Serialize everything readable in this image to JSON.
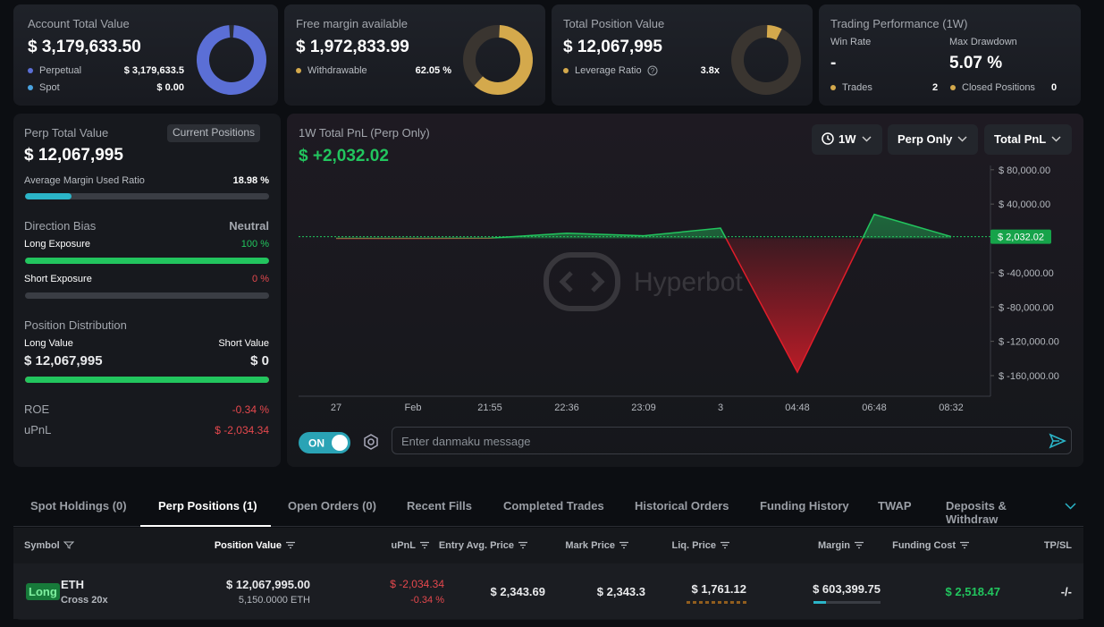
{
  "cards": [
    {
      "title": "Account Total Value",
      "value": "$ 3,179,633.50",
      "rows": [
        {
          "label": "Perpetual",
          "value": {
            "value": 3179633.5,
            "label": "$ 3,179,633.5"
          }
        },
        {
          "label": "Spot",
          "value": {
            "value": 0,
            "label": "$ 0.00"
          }
        }
      ]
    },
    {
      "title": "Free margin available",
      "value": "$ 1,972,833.99",
      "rows": [
        {
          "label": "Withdrawable",
          "value": {
            "value": 62.05,
            "label": "62.05 %"
          }
        }
      ]
    },
    {
      "title": "Total Position Value",
      "value": "$ 12,067,995",
      "rows": [
        {
          "label": "Leverage Ratio",
          "value": "3.8x"
        }
      ]
    },
    {
      "title": "Trading Performance (1W)",
      "stats": [
        {
          "label": "Win Rate",
          "value": "-"
        },
        {
          "label": "Max Drawdown",
          "value": "5.07 %"
        }
      ],
      "rows": [
        {
          "label": "Trades",
          "value": "2"
        },
        {
          "label": "Closed Positions",
          "value": "0"
        }
      ]
    }
  ],
  "perp_panel": {
    "title": "Perp Total Value",
    "button": "Current Positions",
    "value": "$ 12,067,995",
    "margin_ratio": {
      "label": "Average Margin Used Ratio",
      "value": {
        "value": 18.98,
        "label": "18.98 %"
      }
    },
    "direction": {
      "title": "Direction Bias",
      "value": "Neutral",
      "long": {
        "label": "Long Exposure",
        "value": {
          "value": 100,
          "label": "100 %"
        }
      },
      "short": {
        "label": "Short Exposure",
        "value": {
          "value": 0,
          "label": "0 %"
        }
      }
    },
    "distribution": {
      "title": "Position Distribution",
      "long": {
        "label": "Long Value",
        "value": {
          "value": 12067995,
          "label": "$ 12,067,995"
        }
      },
      "short": {
        "label": "Short Value",
        "value": {
          "value": 0,
          "label": "$ 0"
        }
      }
    },
    "roe": {
      "label": "ROE",
      "value": "-0.34 %"
    },
    "upnl": {
      "label": "uPnL",
      "value": "$ -2,034.34"
    }
  },
  "pnl_panel": {
    "title": "1W Total PnL (Perp Only)",
    "value": "$ +2,032.02",
    "dropdowns": [
      "1W",
      "Perp Only",
      "Total PnL"
    ],
    "watermark": "Hyperbot",
    "toggle": "ON",
    "input_placeholder": "Enter danmaku message"
  },
  "chart_data": {
    "type": "line",
    "categories": [
      "27",
      "Feb",
      "21:55",
      "22:36",
      "23:09",
      "3",
      "04:48",
      "06:48",
      "08:32"
    ],
    "values": [
      0,
      0,
      300,
      6000,
      3000,
      12000,
      -156000,
      28000,
      2032.02
    ],
    "ylim": [
      -184000,
      85000
    ],
    "yticks": [
      {
        "value": 80000,
        "label": "$ 80,000.00"
      },
      {
        "value": 40000,
        "label": "$ 40,000.00"
      },
      {
        "value": -40000,
        "label": "$ -40,000.00"
      },
      {
        "value": -80000,
        "label": "$ -80,000.00"
      },
      {
        "value": -120000,
        "label": "$ -120,000.00"
      },
      {
        "value": -160000,
        "label": "$ -160,000.00"
      }
    ],
    "current": {
      "value": 2032.02,
      "label": "$ 2,032.02"
    },
    "colors": {
      "up": "#22c55e",
      "down": "#e11d2a"
    }
  },
  "tabs": {
    "items": [
      "Spot Holdings (0)",
      "Perp Positions (1)",
      "Open Orders (0)",
      "Recent Fills",
      "Completed Trades",
      "Historical Orders",
      "Funding History",
      "TWAP",
      "Deposits & Withdraw"
    ],
    "active": 1
  },
  "table": {
    "columns": [
      "Symbol",
      "Position Value",
      "uPnL",
      "Entry Avg. Price",
      "Mark Price",
      "Liq. Price",
      "Margin",
      "Funding Cost",
      "TP/SL"
    ],
    "rows": [
      {
        "side": "Long",
        "symbol": "ETH",
        "leverage": "Cross 20x",
        "position_value": "$ 12,067,995.00",
        "size": "5,150.0000 ETH",
        "upnl": "$ -2,034.34",
        "upnl_pct": "-0.34 %",
        "entry": "$ 2,343.69",
        "mark": "$ 2,343.3",
        "liq": "$ 1,761.12",
        "margin": "$ 603,399.75",
        "funding": "$ 2,518.47",
        "tpsl": "-/-"
      }
    ]
  }
}
